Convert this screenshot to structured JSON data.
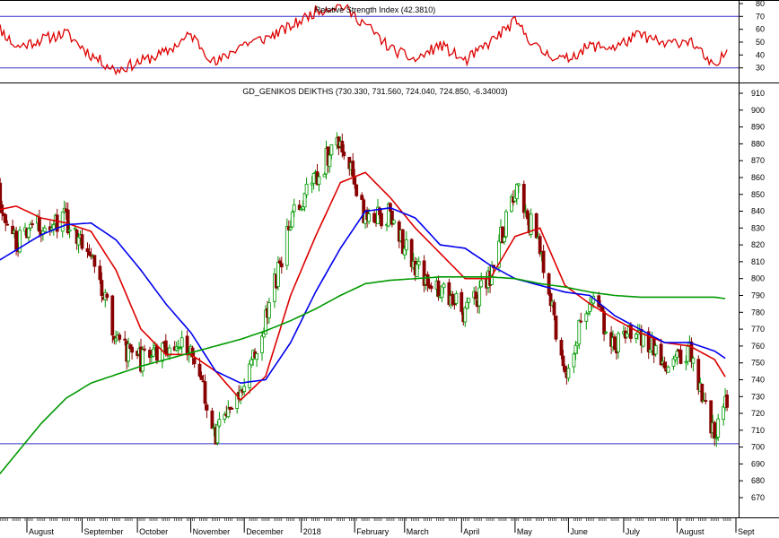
{
  "chart_data": [
    {
      "type": "line",
      "title": "Relative Strength Index (42.3810)",
      "ylim": [
        20,
        80
      ],
      "y_ticks": [
        30,
        40,
        50,
        60,
        70,
        80
      ],
      "reference_lines": [
        70,
        30
      ],
      "grid": false,
      "series": [
        {
          "color": "#dd0000",
          "x": [
            "2017-07-12",
            "2017-07-26",
            "2017-08-09",
            "2017-08-23",
            "2017-09-06",
            "2017-09-20",
            "2017-10-04",
            "2017-10-18",
            "2017-11-01",
            "2017-11-15",
            "2017-11-29",
            "2017-12-13",
            "2017-12-27",
            "2018-01-10",
            "2018-01-24",
            "2018-02-07",
            "2018-02-21",
            "2018-03-07",
            "2018-03-21",
            "2018-04-04",
            "2018-04-18",
            "2018-05-02",
            "2018-05-16",
            "2018-05-30",
            "2018-06-13",
            "2018-06-27",
            "2018-07-11",
            "2018-07-25",
            "2018-08-08",
            "2018-08-22",
            "2018-08-29"
          ],
          "values": [
            68,
            46,
            52,
            57,
            40,
            28,
            35,
            42,
            56,
            33,
            48,
            53,
            62,
            74,
            79,
            64,
            45,
            36,
            48,
            35,
            50,
            66,
            43,
            36,
            47,
            46,
            56,
            48,
            52,
            29,
            44
          ]
        }
      ]
    },
    {
      "type": "candlestick",
      "title": "GD_GENIKOS DEIKTHS (730.330, 731.560, 724.040, 724.850, -6.34003)",
      "ylim": [
        660,
        912
      ],
      "y_ticks": [
        670,
        680,
        690,
        700,
        710,
        720,
        730,
        740,
        750,
        760,
        770,
        780,
        790,
        800,
        810,
        820,
        830,
        840,
        850,
        860,
        870,
        880,
        890,
        900,
        910
      ],
      "x_labels": [
        "August",
        "September",
        "October",
        "November",
        "December",
        "2018",
        "February",
        "March",
        "April",
        "May",
        "June",
        "July",
        "August",
        "Sept"
      ],
      "x_label_dates": [
        "2017-08-01",
        "2017-09-01",
        "2017-10-02",
        "2017-11-01",
        "2017-12-01",
        "2018-01-02",
        "2018-02-01",
        "2018-03-01",
        "2018-04-02",
        "2018-05-02",
        "2018-06-01",
        "2018-07-02",
        "2018-08-01",
        "2018-09-03"
      ],
      "horizontal_lines": [
        702
      ],
      "grid": false,
      "price_path": {
        "x": [
          "2017-07-12",
          "2017-07-26",
          "2017-08-09",
          "2017-08-23",
          "2017-09-06",
          "2017-09-20",
          "2017-10-04",
          "2017-10-18",
          "2017-11-01",
          "2017-11-15",
          "2017-11-29",
          "2017-12-13",
          "2017-12-27",
          "2018-01-10",
          "2018-01-24",
          "2018-02-07",
          "2018-02-21",
          "2018-03-07",
          "2018-03-21",
          "2018-04-04",
          "2018-04-18",
          "2018-05-02",
          "2018-05-16",
          "2018-05-30",
          "2018-06-13",
          "2018-06-27",
          "2018-07-11",
          "2018-07-25",
          "2018-08-08",
          "2018-08-22",
          "2018-08-29"
        ],
        "values": [
          855,
          820,
          832,
          835,
          818,
          762,
          752,
          760,
          760,
          706,
          735,
          775,
          833,
          860,
          885,
          835,
          838,
          805,
          795,
          780,
          800,
          855,
          818,
          745,
          788,
          762,
          768,
          750,
          758,
          708,
          727
        ]
      },
      "series": [
        {
          "kind": "moving-average",
          "color": "#dd0000",
          "x": [
            "2017-07-12",
            "2017-07-26",
            "2017-08-09",
            "2017-08-23",
            "2017-09-06",
            "2017-09-20",
            "2017-10-04",
            "2017-10-18",
            "2017-11-01",
            "2017-11-15",
            "2017-11-29",
            "2017-12-13",
            "2017-12-27",
            "2018-01-10",
            "2018-01-24",
            "2018-02-07",
            "2018-02-21",
            "2018-03-07",
            "2018-03-21",
            "2018-04-04",
            "2018-04-18",
            "2018-05-02",
            "2018-05-16",
            "2018-05-30",
            "2018-06-13",
            "2018-06-27",
            "2018-07-11",
            "2018-07-25",
            "2018-08-08",
            "2018-08-22",
            "2018-08-29"
          ],
          "values": [
            840,
            843,
            836,
            833,
            828,
            805,
            770,
            755,
            755,
            745,
            728,
            742,
            790,
            825,
            857,
            863,
            848,
            830,
            815,
            800,
            800,
            825,
            830,
            796,
            785,
            776,
            768,
            762,
            760,
            752,
            740
          ]
        },
        {
          "kind": "moving-average",
          "color": "#0000ee",
          "x": [
            "2017-07-12",
            "2017-07-26",
            "2017-08-09",
            "2017-08-23",
            "2017-09-06",
            "2017-09-20",
            "2017-10-04",
            "2017-10-18",
            "2017-11-01",
            "2017-11-15",
            "2017-11-29",
            "2017-12-13",
            "2017-12-27",
            "2018-01-10",
            "2018-01-24",
            "2018-02-07",
            "2018-02-21",
            "2018-03-07",
            "2018-03-21",
            "2018-04-04",
            "2018-04-18",
            "2018-05-02",
            "2018-05-16",
            "2018-05-30",
            "2018-06-13",
            "2018-06-27",
            "2018-07-11",
            "2018-07-25",
            "2018-08-08",
            "2018-08-22",
            "2018-08-29"
          ],
          "values": [
            808,
            817,
            826,
            832,
            833,
            823,
            805,
            785,
            768,
            745,
            738,
            740,
            762,
            792,
            818,
            840,
            842,
            836,
            820,
            818,
            808,
            800,
            796,
            792,
            790,
            778,
            770,
            762,
            762,
            757,
            752
          ]
        },
        {
          "kind": "moving-average",
          "color": "#009900",
          "x": [
            "2017-07-12",
            "2017-07-26",
            "2017-08-09",
            "2017-08-23",
            "2017-09-06",
            "2017-09-20",
            "2017-10-04",
            "2017-10-18",
            "2017-11-01",
            "2017-11-15",
            "2017-11-29",
            "2017-12-13",
            "2017-12-27",
            "2018-01-10",
            "2018-01-24",
            "2018-02-07",
            "2018-02-21",
            "2018-03-07",
            "2018-03-21",
            "2018-04-04",
            "2018-04-18",
            "2018-05-02",
            "2018-05-16",
            "2018-05-30",
            "2018-06-13",
            "2018-06-27",
            "2018-07-11",
            "2018-07-25",
            "2018-08-08",
            "2018-08-22",
            "2018-08-29"
          ],
          "values": [
            678,
            696,
            714,
            729,
            738,
            743,
            748,
            752,
            756,
            760,
            764,
            769,
            775,
            782,
            790,
            797,
            799,
            800,
            801,
            801,
            801,
            800,
            797,
            795,
            792,
            790,
            789,
            789,
            789,
            789,
            788
          ]
        }
      ]
    }
  ]
}
